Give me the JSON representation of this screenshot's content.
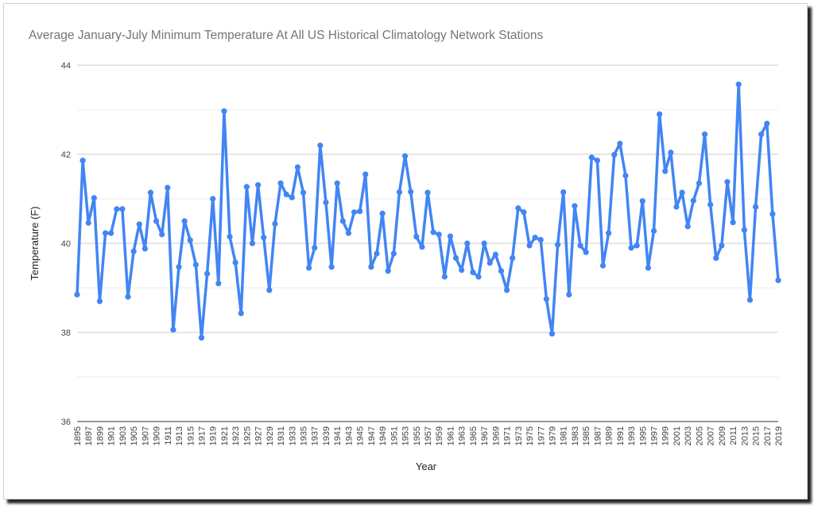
{
  "chart_data": {
    "type": "line",
    "title": "Average January-July Minimum Temperature At All US Historical Climatology Network Stations",
    "xlabel": "Year",
    "ylabel": "Temperature (F)",
    "ylim": [
      36,
      44
    ],
    "yticks": [
      "36",
      "38",
      "40",
      "42",
      "44"
    ],
    "xlim": [
      1895,
      2019
    ],
    "xticks": [
      "1895",
      "1897",
      "1899",
      "1901",
      "1903",
      "1905",
      "1907",
      "1909",
      "1911",
      "1913",
      "1915",
      "1917",
      "1919",
      "1921",
      "1923",
      "1925",
      "1927",
      "1929",
      "1931",
      "1933",
      "1935",
      "1937",
      "1939",
      "1941",
      "1943",
      "1945",
      "1947",
      "1949",
      "1951",
      "1953",
      "1955",
      "1957",
      "1959",
      "1961",
      "1963",
      "1965",
      "1967",
      "1969",
      "1971",
      "1973",
      "1975",
      "1977",
      "1979",
      "1981",
      "1983",
      "1985",
      "1987",
      "1989",
      "1991",
      "1993",
      "1995",
      "1997",
      "1999",
      "2001",
      "2003",
      "2005",
      "2007",
      "2009",
      "2011",
      "2013",
      "2015",
      "2017",
      "2019"
    ],
    "grid": true,
    "legend": "none",
    "color": "#4285f4",
    "x": [
      1895,
      1896,
      1897,
      1898,
      1899,
      1900,
      1901,
      1902,
      1903,
      1904,
      1905,
      1906,
      1907,
      1908,
      1909,
      1910,
      1911,
      1912,
      1913,
      1914,
      1915,
      1916,
      1917,
      1918,
      1919,
      1920,
      1921,
      1922,
      1923,
      1924,
      1925,
      1926,
      1927,
      1928,
      1929,
      1930,
      1931,
      1932,
      1933,
      1934,
      1935,
      1936,
      1937,
      1938,
      1939,
      1940,
      1941,
      1942,
      1943,
      1944,
      1945,
      1946,
      1947,
      1948,
      1949,
      1950,
      1951,
      1952,
      1953,
      1954,
      1955,
      1956,
      1957,
      1958,
      1959,
      1960,
      1961,
      1962,
      1963,
      1964,
      1965,
      1966,
      1967,
      1968,
      1969,
      1970,
      1971,
      1972,
      1973,
      1974,
      1975,
      1976,
      1977,
      1978,
      1979,
      1980,
      1981,
      1982,
      1983,
      1984,
      1985,
      1986,
      1987,
      1988,
      1989,
      1990,
      1991,
      1992,
      1993,
      1994,
      1995,
      1996,
      1997,
      1998,
      1999,
      2000,
      2001,
      2002,
      2003,
      2004,
      2005,
      2006,
      2007,
      2008,
      2009,
      2010,
      2011,
      2012,
      2013,
      2014,
      2015,
      2016,
      2017,
      2018,
      2019
    ],
    "values": [
      38.85,
      41.86,
      40.46,
      41.02,
      38.7,
      40.23,
      40.23,
      40.77,
      40.77,
      38.8,
      39.82,
      40.43,
      39.88,
      41.14,
      40.5,
      40.2,
      41.25,
      38.06,
      39.47,
      40.5,
      40.07,
      39.52,
      37.88,
      39.32,
      41.0,
      39.1,
      42.97,
      40.15,
      39.57,
      38.43,
      41.27,
      40.0,
      41.31,
      40.13,
      38.95,
      40.44,
      41.35,
      41.1,
      41.03,
      41.71,
      41.14,
      39.45,
      39.9,
      42.2,
      40.92,
      39.47,
      41.35,
      40.5,
      40.23,
      40.7,
      40.72,
      41.55,
      39.47,
      39.77,
      40.67,
      39.38,
      39.77,
      41.15,
      41.96,
      41.16,
      40.15,
      39.92,
      41.14,
      40.25,
      40.2,
      39.25,
      40.16,
      39.67,
      39.4,
      40.0,
      39.35,
      39.25,
      40.0,
      39.56,
      39.75,
      39.38,
      38.95,
      39.67,
      40.79,
      40.7,
      39.95,
      40.13,
      40.08,
      38.75,
      37.97,
      39.97,
      41.15,
      38.85,
      40.84,
      39.95,
      39.8,
      41.93,
      41.86,
      39.5,
      40.23,
      41.99,
      42.24,
      41.52,
      39.9,
      39.95,
      40.95,
      39.45,
      40.28,
      42.9,
      41.62,
      42.04,
      40.82,
      41.14,
      40.38,
      40.96,
      41.35,
      42.45,
      40.87,
      39.67,
      39.95,
      41.38,
      40.47,
      43.57,
      40.3,
      38.73,
      40.82,
      42.45,
      42.69,
      40.66,
      39.17
    ]
  }
}
